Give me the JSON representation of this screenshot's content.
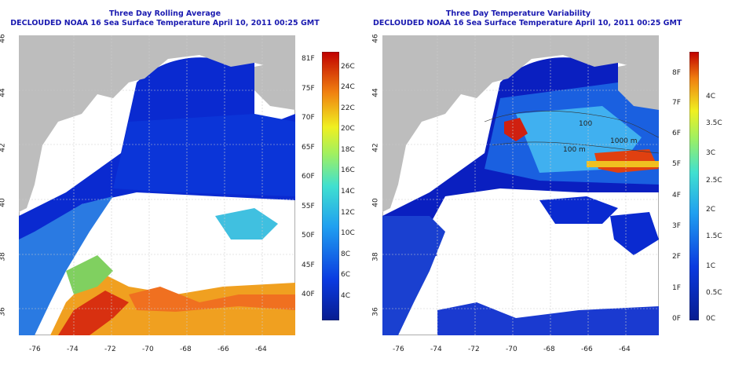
{
  "left_panel": {
    "title_line1": "Three Day Rolling Average",
    "title_line2": "DECLOUDED NOAA 16 Sea Surface Temperature April 10, 2011 00:25 GMT",
    "y_ticks": [
      "46",
      "44",
      "42",
      "40",
      "38",
      "36"
    ],
    "x_ticks": [
      "-76",
      "-74",
      "-72",
      "-70",
      "-68",
      "-66",
      "-64"
    ],
    "colorbar_f": [
      "81F",
      "75F",
      "70F",
      "65F",
      "60F",
      "55F",
      "50F",
      "45F",
      "40F"
    ],
    "colorbar_c": [
      "26C",
      "24C",
      "22C",
      "20C",
      "18C",
      "16C",
      "14C",
      "12C",
      "10C",
      "8C",
      "6C",
      "4C"
    ]
  },
  "right_panel": {
    "title_line1": "Three Day Temperature Variability",
    "title_line2": "DECLOUDED NOAA 16 Sea Surface Temperature April 10, 2011 00:25 GMT",
    "y_ticks": [
      "46",
      "44",
      "42",
      "40",
      "38",
      "36"
    ],
    "x_ticks": [
      "-76",
      "-74",
      "-72",
      "-70",
      "-68",
      "-66",
      "-64"
    ],
    "colorbar_f": [
      "8F",
      "7F",
      "6F",
      "5F",
      "4F",
      "3F",
      "2F",
      "1F",
      "0F"
    ],
    "colorbar_c": [
      "4C",
      "3.5C",
      "3C",
      "2.5C",
      "2C",
      "1.5C",
      "1C",
      "0.5C",
      "0C"
    ],
    "contour_labels": [
      "100",
      "100 m",
      "1000 m"
    ]
  },
  "colors": {
    "title": "#1a1ab0",
    "land": "#bdbdbd",
    "cloud": "#ffffff"
  }
}
